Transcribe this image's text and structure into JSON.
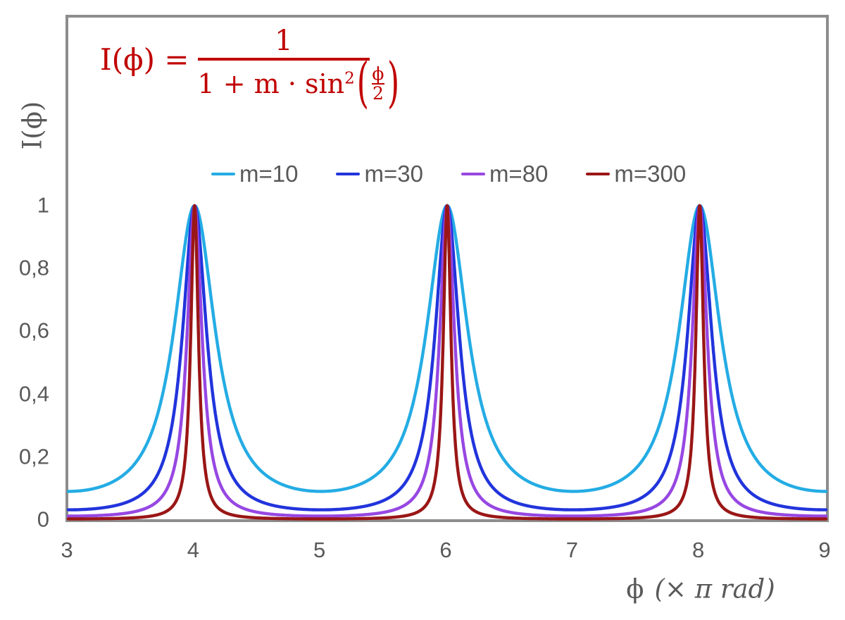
{
  "colors": {
    "text": "#595959",
    "frame": "#8D8D8D",
    "background": "#FFFFFF"
  },
  "formula": {
    "lhs": "I(ϕ) =",
    "numerator": "1",
    "den_base": "1 + m · sin",
    "den_exponent": "2",
    "paren_open": "(",
    "paren_close": ")",
    "inner_top": "ϕ",
    "inner_bottom": "2",
    "color": "#C00000"
  },
  "chart_data": {
    "type": "line",
    "function": "I(phi) = 1 / (1 + m * sin^2(phi/2)), phi in units of pi rad",
    "grid": false,
    "legend_position": "top-center",
    "x_axis": {
      "label_phi": "ϕ",
      "label_rest": "(× π rad)",
      "min": 3,
      "max": 9,
      "ticks": [
        "3",
        "4",
        "5",
        "6",
        "7",
        "8",
        "9"
      ],
      "tick_values": [
        3,
        4,
        5,
        6,
        7,
        8,
        9
      ]
    },
    "y_axis": {
      "label": "I(ϕ)",
      "min": 0,
      "max": 1,
      "ticks": [
        "0",
        "0,2",
        "0,4",
        "0,6",
        "0,8",
        "1"
      ],
      "tick_values": [
        0,
        0.2,
        0.4,
        0.6,
        0.8,
        1
      ]
    },
    "peaks_at_x": [
      4,
      6,
      8
    ],
    "sample_x": [
      3,
      3.5,
      4,
      4.5,
      5,
      5.5,
      6,
      6.5,
      7,
      7.5,
      8,
      8.5,
      9
    ],
    "series": [
      {
        "name": "m=10",
        "m": 10,
        "color": "#24ACE4",
        "sample_y": [
          0.091,
          0.167,
          1,
          0.167,
          0.091,
          0.167,
          1,
          0.167,
          0.091,
          0.167,
          1,
          0.167,
          0.091
        ]
      },
      {
        "name": "m=30",
        "m": 30,
        "color": "#2134DC",
        "sample_y": [
          0.032,
          0.063,
          1,
          0.063,
          0.032,
          0.063,
          1,
          0.063,
          0.032,
          0.063,
          1,
          0.063,
          0.032
        ]
      },
      {
        "name": "m=80",
        "m": 80,
        "color": "#9747E2",
        "sample_y": [
          0.012,
          0.024,
          1,
          0.024,
          0.012,
          0.024,
          1,
          0.024,
          0.012,
          0.024,
          1,
          0.024,
          0.012
        ]
      },
      {
        "name": "m=300",
        "m": 300,
        "color": "#9A1616",
        "sample_y": [
          0.003,
          0.007,
          1,
          0.007,
          0.003,
          0.007,
          1,
          0.007,
          0.003,
          0.007,
          1,
          0.007,
          0.003
        ]
      }
    ]
  }
}
